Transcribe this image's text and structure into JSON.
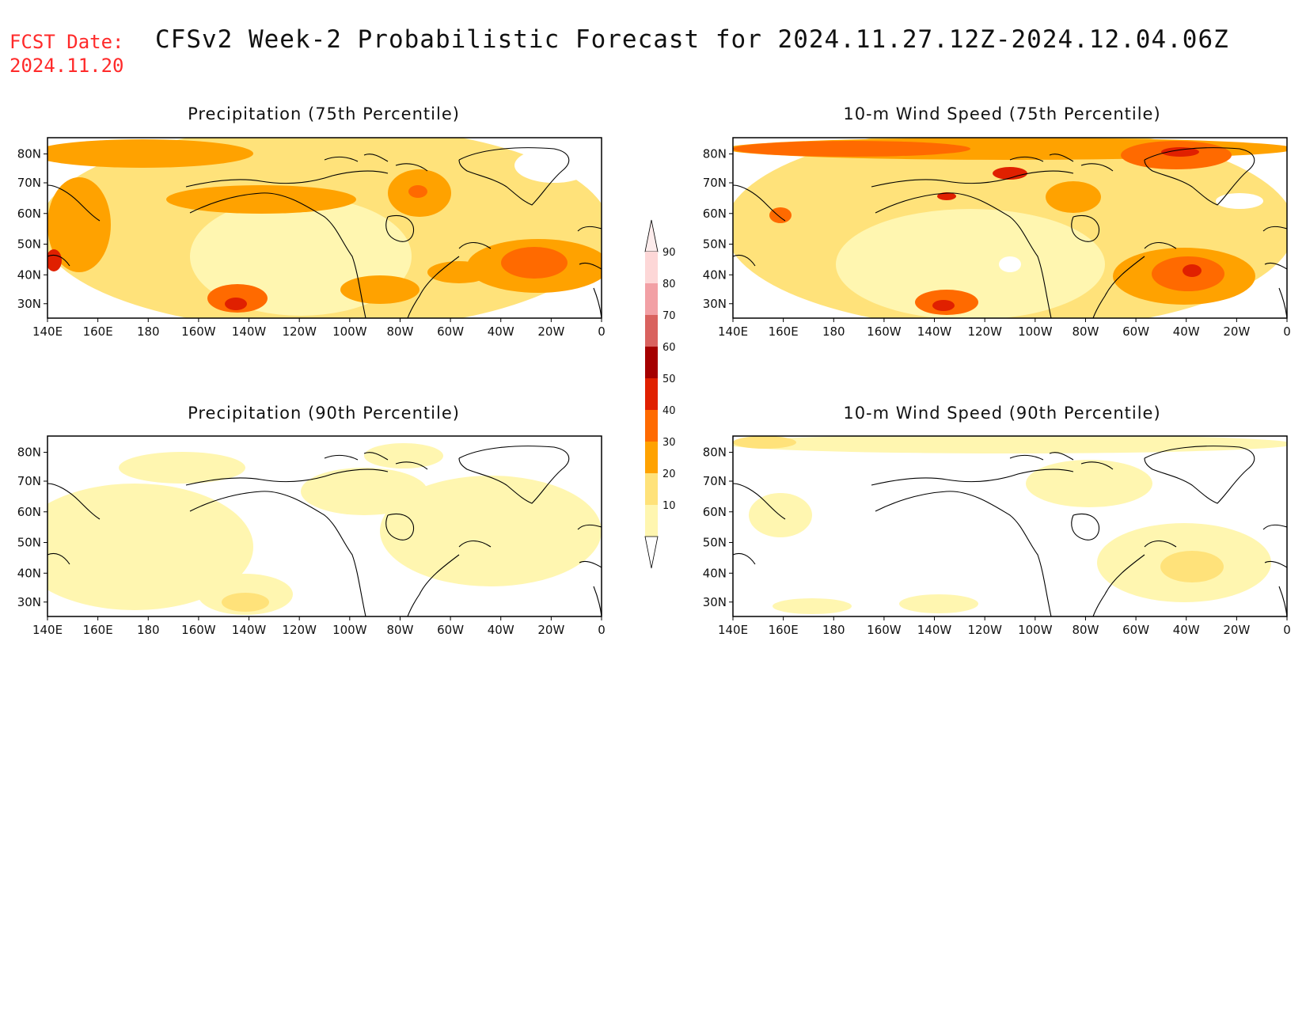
{
  "header": {
    "fcst_line1": "FCST Date:",
    "fcst_line2": "2024.11.20",
    "title": "CFSv2 Week-2 Probabilistic Forecast for 2024.11.27.12Z-2024.12.04.06Z"
  },
  "axes": {
    "lon_labels": [
      "140E",
      "160E",
      "180",
      "160W",
      "140W",
      "120W",
      "100W",
      "80W",
      "60W",
      "40W",
      "20W",
      "0"
    ],
    "lat_labels": [
      "80N",
      "70N",
      "60N",
      "50N",
      "40N",
      "30N"
    ]
  },
  "panels": [
    {
      "id": "precip-75",
      "title": "Precipitation (75th Percentile)"
    },
    {
      "id": "wind-75",
      "title": "10-m Wind Speed (75th Percentile)"
    },
    {
      "id": "precip-90",
      "title": "Precipitation (90th Percentile)"
    },
    {
      "id": "wind-90",
      "title": "10-m Wind Speed (90th Percentile)"
    }
  ],
  "colorbar": {
    "labels": [
      "90",
      "80",
      "70",
      "60",
      "50",
      "40",
      "30",
      "20",
      "10"
    ],
    "colors": [
      "#fdd7d7",
      "#f2a0a5",
      "#d9625f",
      "#a50000",
      "#e02000",
      "#ff6a00",
      "#ffa200",
      "#ffe27a",
      "#fff6b0"
    ]
  },
  "palette": {
    "white": "#ffffff",
    "pale": "#fff6b0",
    "light": "#ffe27a",
    "mid": "#ffa200",
    "orange": "#ff6a00",
    "red": "#e02000"
  }
}
